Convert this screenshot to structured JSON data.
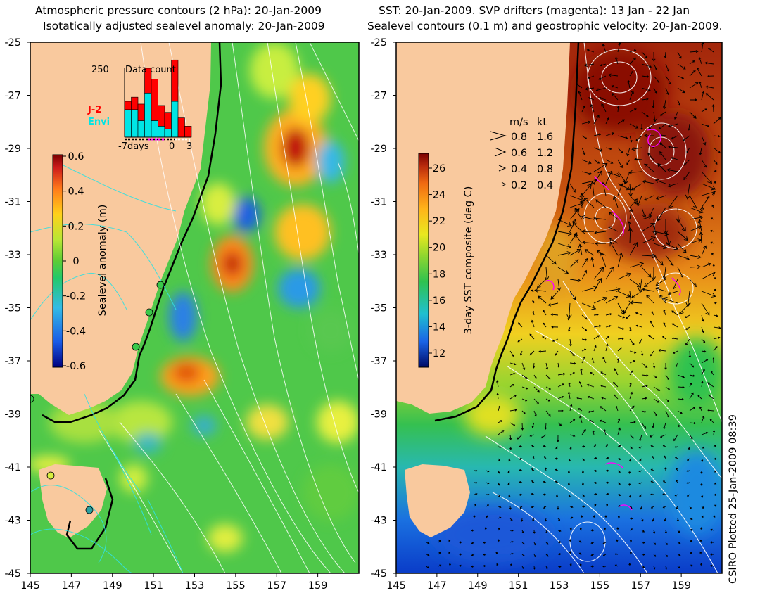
{
  "left_panel": {
    "title_line1": "Atmospheric pressure contours (2 hPa): 20-Jan-2009",
    "title_line2": "Isotatically adjusted sealevel anomaly: 20-Jan-2009",
    "lat_ticks": [
      "-25",
      "-27",
      "-29",
      "-31",
      "-33",
      "-35",
      "-37",
      "-39",
      "-41",
      "-43",
      "-45"
    ],
    "lon_ticks": [
      "145",
      "147",
      "149",
      "151",
      "153",
      "155",
      "157",
      "159"
    ],
    "colorbar": {
      "label": "Sealevel anomaly (m)",
      "ticks": [
        "0.6",
        "0.4",
        "0.2",
        "0",
        "-0.2",
        "-0.4",
        "-0.6"
      ]
    },
    "inset": {
      "title": "Data count",
      "y_max_label": "250",
      "x_ticks": [
        "-7days",
        "0",
        "3"
      ],
      "legend": [
        {
          "label": "J-2",
          "color": "#ff0000"
        },
        {
          "label": "Envi",
          "color": "#00e5e5"
        }
      ],
      "chart_data": {
        "type": "bar",
        "x": [
          -7,
          -6,
          -5,
          -4,
          -3,
          -2,
          -1,
          0,
          1,
          2
        ],
        "series": [
          {
            "name": "J-2",
            "values": [
              30,
              45,
              60,
              90,
              150,
              75,
              60,
              150,
              70,
              40
            ]
          },
          {
            "name": "Envi",
            "values": [
              100,
              100,
              60,
              160,
              60,
              40,
              30,
              130,
              0,
              0
            ]
          }
        ],
        "ylim": [
          0,
          250
        ],
        "xlim": [
          -7,
          3
        ]
      }
    }
  },
  "right_panel": {
    "title_line1": "SST: 20-Jan-2009. SVP drifters (magenta): 13 Jan - 22 Jan",
    "title_line2": "Sealevel contours (0.1 m) and geostrophic velocity: 20-Jan-2009.",
    "lat_ticks": [
      "-25",
      "-27",
      "-29",
      "-31",
      "-33",
      "-35",
      "-37",
      "-39",
      "-41",
      "-43",
      "-45"
    ],
    "lon_ticks": [
      "145",
      "147",
      "149",
      "151",
      "153",
      "155",
      "157",
      "159"
    ],
    "colorbar": {
      "label": "3-day SST composite (deg C)",
      "ticks": [
        "26",
        "24",
        "22",
        "20",
        "18",
        "16",
        "14",
        "12"
      ]
    },
    "velocity_key": {
      "header_ms": "m/s",
      "header_kt": "kt",
      "rows": [
        {
          "ms": "0.8",
          "kt": "1.6"
        },
        {
          "ms": "0.6",
          "kt": "1.2"
        },
        {
          "ms": "0.4",
          "kt": "0.8"
        },
        {
          "ms": "0.2",
          "kt": "0.4"
        }
      ]
    }
  },
  "side_note": "CSIRO Plotted 25-Jan-2009 08:39",
  "colors": {
    "land": "#f9c99e",
    "sla_scale": [
      "#00007f",
      "#1a5be6",
      "#33bbe6",
      "#22c96a",
      "#5ccc35",
      "#b8e635",
      "#ffd11a",
      "#ff7a1a",
      "#cc1a1a",
      "#7a0000"
    ],
    "sst_scale": [
      "#000a66",
      "#1a63e6",
      "#20c0d0",
      "#2fc24f",
      "#8fd62f",
      "#e9e81f",
      "#ffb41a",
      "#f06a12",
      "#b92b0c",
      "#7a0000"
    ],
    "contour": "#ffffff",
    "isobar": "#33e0e0",
    "drifter": "#ff00ff"
  }
}
